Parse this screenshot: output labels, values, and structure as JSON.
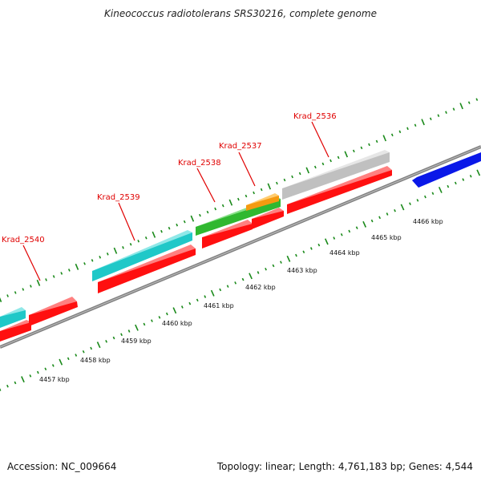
{
  "title": "Kineococcus radiotolerans SRS30216, complete genome",
  "footer": {
    "accession": "Accession: NC_009664",
    "summary": "Topology: linear; Length: 4,761,183 bp; Genes: 4,544"
  },
  "colors": {
    "cds_forward_red": "#ff1010",
    "rna_cyan": "#20c8c8",
    "gene_green": "#30b830",
    "misc_orange": "#f59a10",
    "pseudo_gray": "#c8c8c8",
    "other_blue": "#0a18e8",
    "backbone_gray": "#808080",
    "tick_green": "#1a8a1a",
    "label_red": "#e00000"
  },
  "scale_labels": [
    "4457 kbp",
    "4458 kbp",
    "4459 kbp",
    "4460 kbp",
    "4461 kbp",
    "4462 kbp",
    "4463 kbp",
    "4464 kbp",
    "4465 kbp",
    "4466 kbp"
  ],
  "gene_labels": [
    "Krad_2540",
    "Krad_2539",
    "Krad_2538",
    "Krad_2537",
    "Krad_2536"
  ]
}
